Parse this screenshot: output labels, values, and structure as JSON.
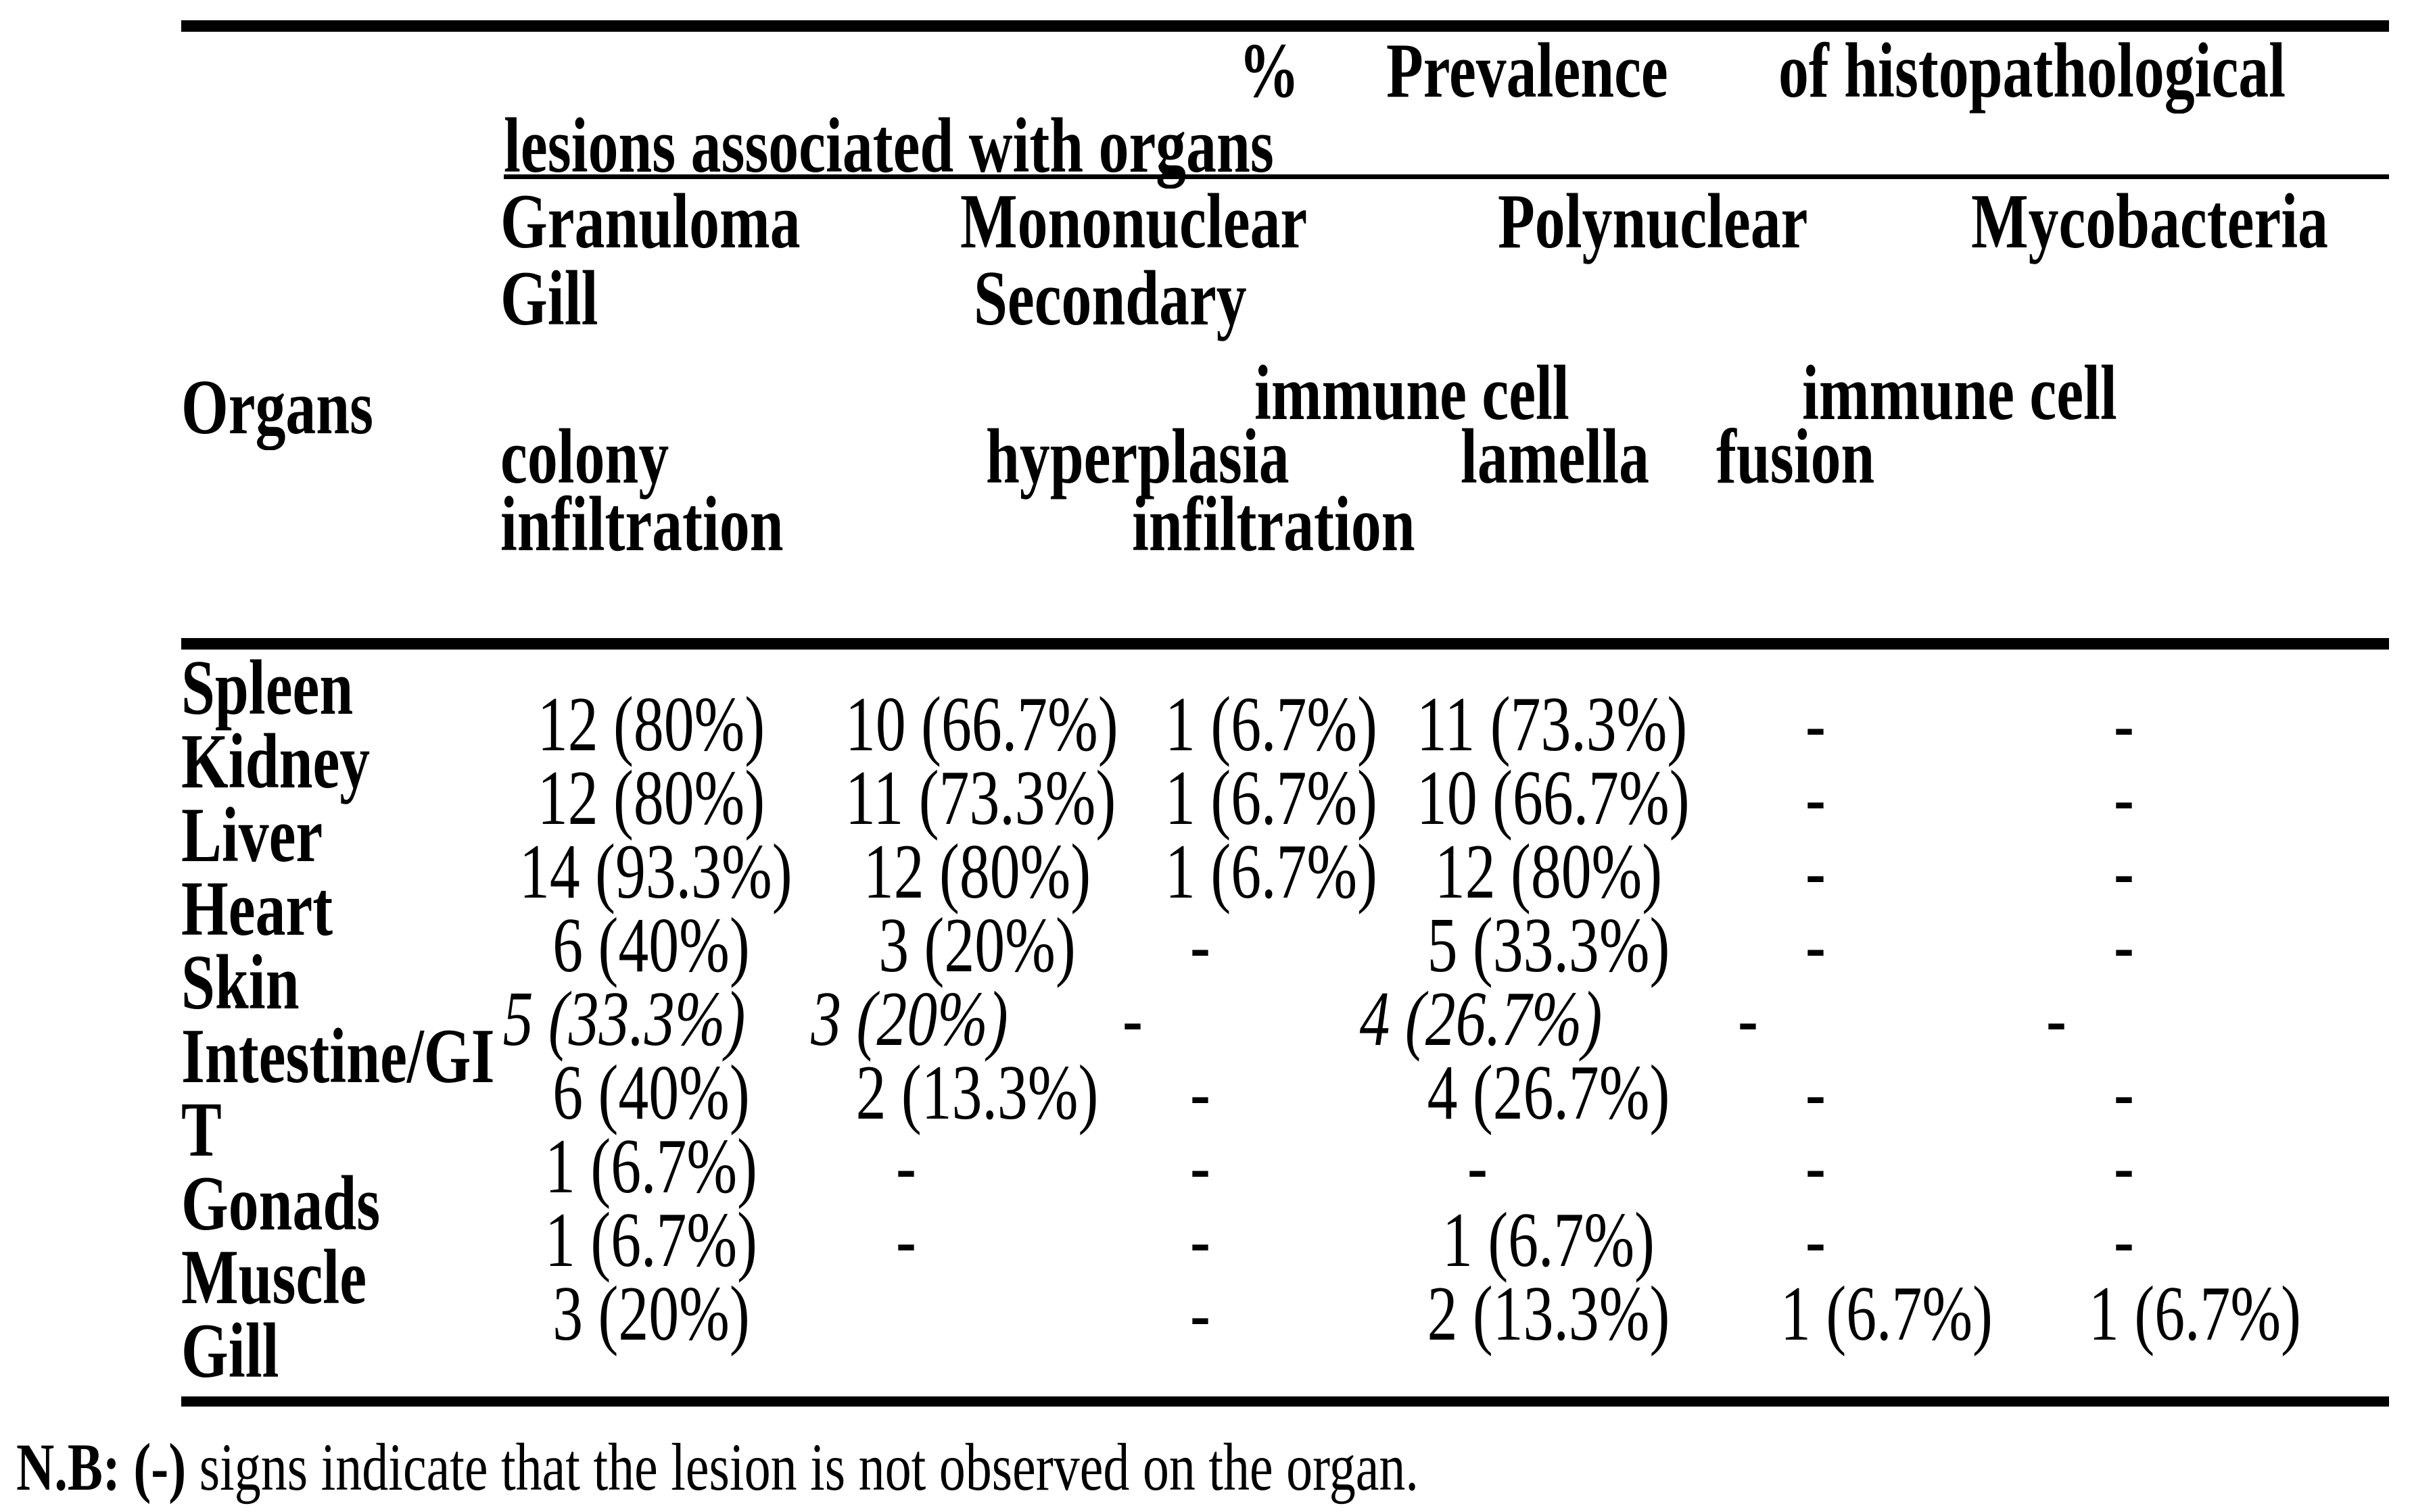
{
  "title": {
    "p1": "%",
    "p2": "Prevalence",
    "p3": "of histopathological",
    "line2": "lesions associated with organs"
  },
  "header": {
    "row_header": "Organs",
    "line1": [
      "Granuloma",
      "Mononuclear",
      "Polynuclear",
      "Mycobacteria"
    ],
    "line2": [
      "Gill",
      "Secondary"
    ],
    "line3": [
      "immune cell",
      "immune cell"
    ],
    "line4": [
      "colony",
      "hyperplasia",
      "lamella",
      "fusion"
    ],
    "line5": [
      "infiltration",
      "infiltration"
    ]
  },
  "table": {
    "organ_labels": [
      "Spleen",
      "Kidney",
      "Liver",
      "Heart",
      "Skin",
      "Intestine/GI",
      "T",
      "Gonads",
      "Muscle",
      "Gill"
    ],
    "rows": [
      {
        "organ": "Spleen",
        "italic": false,
        "values": [
          "12 (80%)",
          "10 (66.7%)",
          "1 (6.7%)",
          "11 (73.3%)",
          "-",
          "-"
        ]
      },
      {
        "organ": "Kidney",
        "italic": false,
        "values": [
          "12 (80%)",
          "11 (73.3%)",
          "1 (6.7%)",
          "10 (66.7%)",
          "-",
          "-"
        ]
      },
      {
        "organ": "Liver",
        "italic": false,
        "values": [
          "14 (93.3%)",
          "12 (80%)",
          "1 (6.7%)",
          "12 (80%)",
          "-",
          "-"
        ]
      },
      {
        "organ": "Heart",
        "italic": false,
        "values": [
          "6 (40%)",
          "3 (20%)",
          "-",
          "5 (33.3%)",
          "-",
          "-"
        ]
      },
      {
        "organ": "Skin",
        "italic": true,
        "values": [
          "5 (33.3%)",
          "3 (20%)",
          "-",
          "4 (26.7%)",
          "-",
          "-"
        ]
      },
      {
        "organ": "Intestine/GIT",
        "italic": false,
        "values": [
          "6 (40%)",
          "2 (13.3%)",
          "-",
          "4 (26.7%)",
          "-",
          "-"
        ]
      },
      {
        "organ": "Gonads",
        "italic": false,
        "values": [
          "1 (6.7%)",
          "-",
          "-",
          "-",
          "-",
          "-"
        ]
      },
      {
        "organ": "Muscle",
        "italic": false,
        "values": [
          "1 (6.7%)",
          "-",
          "-",
          "1 (6.7%)",
          "-",
          "-"
        ]
      },
      {
        "organ": "Gill",
        "italic": false,
        "values": [
          "3 (20%)",
          "",
          "-",
          "2 (13.3%)",
          "1 (6.7%)",
          "1 (6.7%)"
        ]
      }
    ]
  },
  "note": {
    "bold": "N.B: (-)",
    "rest": " signs indicate that the lesion is not observed on the organ."
  }
}
